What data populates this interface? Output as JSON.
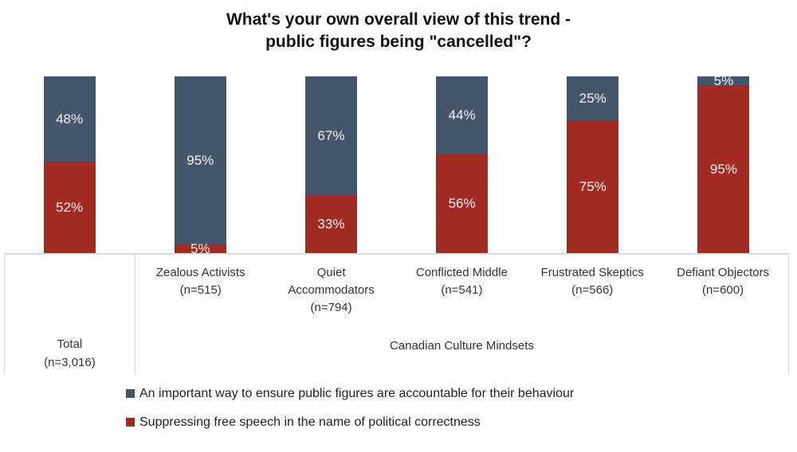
{
  "title": {
    "line1": "What's your own overall view of this trend -",
    "line2": "public figures being \"cancelled\"?"
  },
  "chart_data": {
    "type": "bar",
    "stacked": true,
    "value_format": "percent",
    "ylim": [
      0,
      100
    ],
    "grid": false,
    "legend_position": "bottom-left",
    "categories": [
      {
        "label": "Total (n=3,016)",
        "lines": [
          "Total",
          "(n=3,016)"
        ]
      },
      {
        "label": "Zealous Activists (n=515)",
        "lines": [
          "Zealous Activists",
          "(n=515)"
        ]
      },
      {
        "label": "Quiet Accommodators (n=794)",
        "lines": [
          "Quiet",
          "Accommodators",
          "(n=794)"
        ]
      },
      {
        "label": "Conflicted Middle (n=541)",
        "lines": [
          "Conflicted Middle",
          "(n=541)"
        ]
      },
      {
        "label": "Frustrated Skeptics (n=566)",
        "lines": [
          "Frustrated Skeptics",
          "(n=566)"
        ]
      },
      {
        "label": "Defiant Objectors (n=600)",
        "lines": [
          "Defiant Objectors",
          "(n=600)"
        ]
      }
    ],
    "series": [
      {
        "name": "An important way to ensure public figures are accountable for their behaviour",
        "color": "#45566B",
        "stack_position": "top",
        "values": [
          48,
          95,
          67,
          44,
          25,
          5
        ]
      },
      {
        "name": "Suppressing free speech in the name of political correctness",
        "color": "#A12B22",
        "stack_position": "bottom",
        "values": [
          52,
          5,
          33,
          56,
          75,
          95
        ]
      }
    ],
    "group_axis_label": "Canadian Culture Mindsets"
  },
  "legend": {
    "items": [
      {
        "label": "An important way to ensure public figures are accountable for their behaviour",
        "color": "#45566B"
      },
      {
        "label": "Suppressing free speech in the name of political correctness",
        "color": "#A12B22"
      }
    ]
  },
  "colors": {
    "accountable_blue": "#45566B",
    "suppressing_red": "#A12B22",
    "axis_border": "#D9D9D9",
    "axis_text": "#333333",
    "bar_value_text": "#F2F2F2"
  }
}
